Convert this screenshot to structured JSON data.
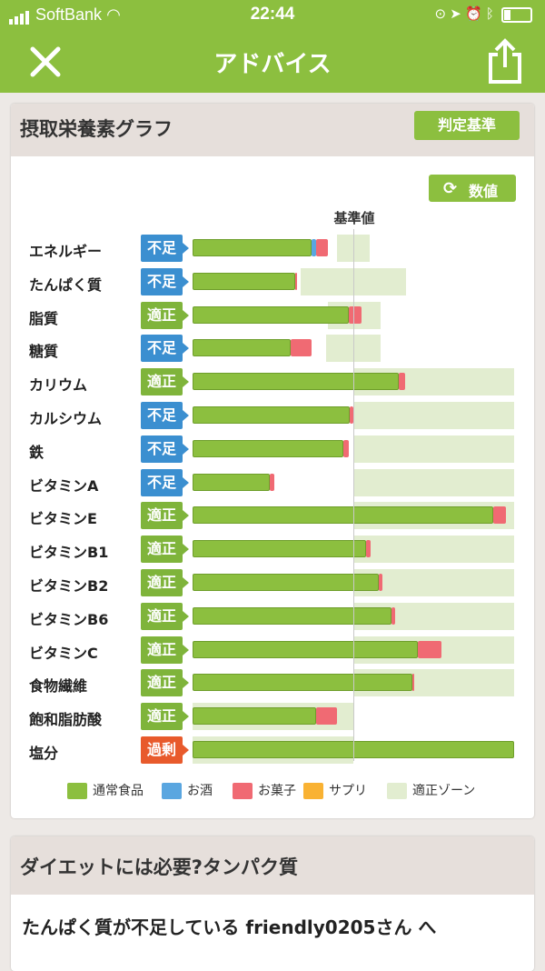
{
  "status_bar": {
    "carrier": "SoftBank",
    "time": "22:44"
  },
  "header": {
    "title": "アドバイス",
    "close_icon": "close-icon",
    "share_icon": "share-icon"
  },
  "graph_card": {
    "title": "摂取栄養素グラフ",
    "criteria_button": "判定基準",
    "value_button": "数値",
    "reference_label": "基準値",
    "chart_data": {
      "type": "bar",
      "note_units": "percent of reference value",
      "categories": [
        "エネルギー",
        "たんぱく質",
        "脂質",
        "糖質",
        "カリウム",
        "カルシウム",
        "鉄",
        "ビタミンA",
        "ビタミンE",
        "ビタミンB1",
        "ビタミンB2",
        "ビタミンB6",
        "ビタミンC",
        "食物繊維",
        "飽和脂肪酸",
        "塩分"
      ],
      "status": [
        "不足",
        "不足",
        "適正",
        "不足",
        "適正",
        "不足",
        "不足",
        "不足",
        "適正",
        "適正",
        "適正",
        "適正",
        "適正",
        "適正",
        "適正",
        "過剰"
      ],
      "series": [
        {
          "name": "通常食品",
          "values": [
            74,
            64,
            97,
            61,
            128,
            98,
            94,
            48,
            187,
            108,
            116,
            124,
            140,
            137,
            77,
            200
          ]
        },
        {
          "name": "お酒",
          "values": [
            3,
            0,
            0,
            0,
            0,
            0,
            0,
            0,
            0,
            0,
            0,
            0,
            0,
            0,
            0,
            0
          ]
        },
        {
          "name": "お菓子",
          "values": [
            7,
            1,
            8,
            13,
            4,
            2,
            3,
            3,
            8,
            3,
            2,
            2,
            15,
            1,
            13,
            0
          ]
        },
        {
          "name": "サプリ",
          "values": [
            0,
            0,
            0,
            0,
            0,
            0,
            0,
            0,
            0,
            0,
            0,
            0,
            0,
            0,
            0,
            0
          ]
        }
      ],
      "zones": [
        [
          90,
          110
        ],
        [
          67,
          133
        ],
        [
          84,
          117
        ],
        [
          83,
          117
        ],
        [
          100,
          200
        ],
        [
          100,
          200
        ],
        [
          100,
          200
        ],
        [
          100,
          200
        ],
        [
          100,
          200
        ],
        [
          100,
          200
        ],
        [
          100,
          200
        ],
        [
          100,
          200
        ],
        [
          100,
          200
        ],
        [
          100,
          200
        ],
        [
          0,
          100
        ],
        [
          0,
          100
        ]
      ],
      "xlim": [
        0,
        200
      ],
      "legend": [
        "通常食品",
        "お酒",
        "お菓子",
        "サプリ",
        "適正ゾーン"
      ],
      "legend_position": "bottom",
      "colors": {
        "通常食品": "#8cbf3f",
        "お酒": "#5aa6e0",
        "お菓子": "#f06a73",
        "サプリ": "#f9b233",
        "適正ゾーン": "#e2edd0"
      }
    }
  },
  "article_card": {
    "title": "ダイエットには必要?タンパク質",
    "body": "たんぱく質が不足している friendly0205さん へ"
  }
}
